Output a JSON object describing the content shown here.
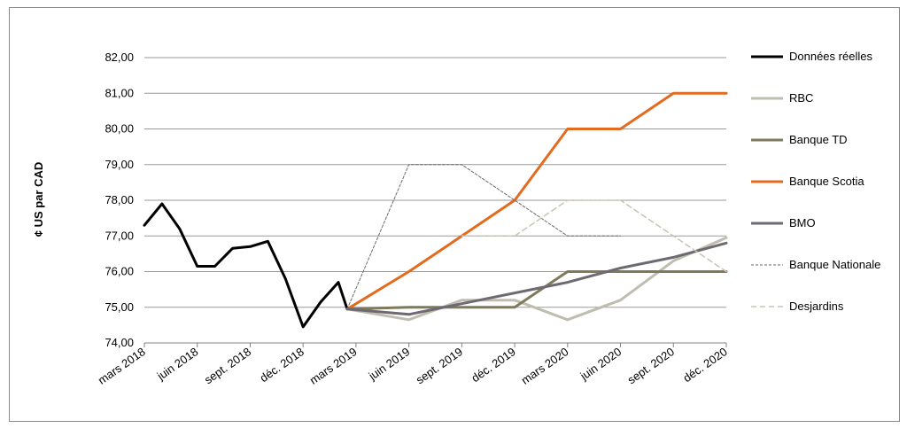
{
  "chart_data": {
    "type": "line",
    "title": "",
    "ylabel": "¢ US par CAD",
    "xlabel": "",
    "ylim": [
      74,
      82
    ],
    "grid": true,
    "legend_position": "right",
    "y_ticks": [
      "74,00",
      "75,00",
      "76,00",
      "77,00",
      "78,00",
      "79,00",
      "80,00",
      "81,00",
      "82,00"
    ],
    "x_ticks": [
      {
        "label": "mars 2018",
        "t": 0
      },
      {
        "label": "juin 2018",
        "t": 3
      },
      {
        "label": "sept. 2018",
        "t": 6
      },
      {
        "label": "déc. 2018",
        "t": 9
      },
      {
        "label": "mars 2019",
        "t": 12
      },
      {
        "label": "juin 2019",
        "t": 15
      },
      {
        "label": "sept. 2019",
        "t": 18
      },
      {
        "label": "déc. 2019",
        "t": 21
      },
      {
        "label": "mars 2020",
        "t": 24
      },
      {
        "label": "juin 2020",
        "t": 27
      },
      {
        "label": "sept. 2020",
        "t": 30
      },
      {
        "label": "déc. 2020",
        "t": 33
      }
    ],
    "series": [
      {
        "name": "Données réelles",
        "color": "#000000",
        "width": 3,
        "dash": "",
        "points": [
          [
            0,
            77.3
          ],
          [
            1,
            77.9
          ],
          [
            2,
            77.2
          ],
          [
            3,
            76.15
          ],
          [
            4,
            76.15
          ],
          [
            5,
            76.65
          ],
          [
            6,
            76.7
          ],
          [
            7,
            76.85
          ],
          [
            8,
            75.8
          ],
          [
            9,
            74.45
          ],
          [
            10,
            75.15
          ],
          [
            11,
            75.7
          ],
          [
            11.5,
            74.95
          ]
        ]
      },
      {
        "name": "RBC",
        "color": "#bfbcb0",
        "width": 3,
        "dash": "",
        "points": [
          [
            11.5,
            74.95
          ],
          [
            15,
            74.65
          ],
          [
            18,
            75.2
          ],
          [
            21,
            75.2
          ],
          [
            24,
            74.65
          ],
          [
            27,
            75.2
          ],
          [
            30,
            76.3
          ],
          [
            33,
            76.95
          ]
        ]
      },
      {
        "name": "Banque TD",
        "color": "#807a5c",
        "width": 3,
        "dash": "",
        "points": [
          [
            11.5,
            74.95
          ],
          [
            15,
            75.0
          ],
          [
            18,
            75.0
          ],
          [
            21,
            75.0
          ],
          [
            24,
            76.0
          ],
          [
            27,
            76.0
          ],
          [
            30,
            76.0
          ],
          [
            33,
            76.0
          ]
        ]
      },
      {
        "name": "Banque Scotia",
        "color": "#e36b1f",
        "width": 3,
        "dash": "",
        "points": [
          [
            11.5,
            74.95
          ],
          [
            15,
            76.0
          ],
          [
            18,
            77.0
          ],
          [
            21,
            78.0
          ],
          [
            24,
            80.0
          ],
          [
            27,
            80.0
          ],
          [
            30,
            81.0
          ],
          [
            33,
            81.0
          ]
        ]
      },
      {
        "name": "BMO",
        "color": "#6e6a72",
        "width": 3,
        "dash": "",
        "points": [
          [
            11.5,
            74.95
          ],
          [
            15,
            74.8
          ],
          [
            18,
            75.1
          ],
          [
            21,
            75.4
          ],
          [
            24,
            75.7
          ],
          [
            27,
            76.1
          ],
          [
            30,
            76.4
          ],
          [
            33,
            76.8
          ]
        ]
      },
      {
        "name": "Banque Nationale",
        "color": "#6a6a6a",
        "width": 1,
        "dash": "3,2",
        "points": [
          [
            11.5,
            74.95
          ],
          [
            15,
            79.0
          ],
          [
            18,
            79.0
          ],
          [
            21,
            78.0
          ],
          [
            24,
            77.0
          ],
          [
            27,
            77.0
          ]
        ]
      },
      {
        "name": "Desjardins",
        "color": "#c8c3b4",
        "width": 1.5,
        "dash": "6,4",
        "points": [
          [
            18,
            77.0
          ],
          [
            21,
            77.0
          ],
          [
            24,
            78.0
          ],
          [
            27,
            78.0
          ],
          [
            30,
            77.0
          ],
          [
            33,
            76.0
          ]
        ]
      }
    ]
  }
}
